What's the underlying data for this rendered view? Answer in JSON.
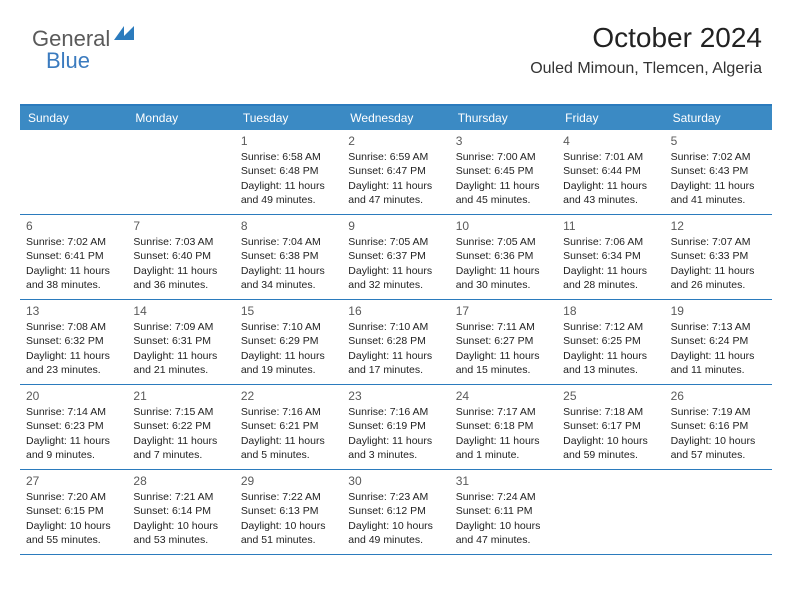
{
  "logo": {
    "text1": "General",
    "text2": "Blue",
    "mark_color": "#2b7bbd"
  },
  "title": "October 2024",
  "subtitle": "Ouled Mimoun, Tlemcen, Algeria",
  "header_bg": "#3b8ac4",
  "header_fg": "#ffffff",
  "border_color": "#2b7bbd",
  "day_headers": [
    "Sunday",
    "Monday",
    "Tuesday",
    "Wednesday",
    "Thursday",
    "Friday",
    "Saturday"
  ],
  "weeks": [
    [
      null,
      null,
      {
        "n": "1",
        "sr": "Sunrise: 6:58 AM",
        "ss": "Sunset: 6:48 PM",
        "dl": "Daylight: 11 hours and 49 minutes."
      },
      {
        "n": "2",
        "sr": "Sunrise: 6:59 AM",
        "ss": "Sunset: 6:47 PM",
        "dl": "Daylight: 11 hours and 47 minutes."
      },
      {
        "n": "3",
        "sr": "Sunrise: 7:00 AM",
        "ss": "Sunset: 6:45 PM",
        "dl": "Daylight: 11 hours and 45 minutes."
      },
      {
        "n": "4",
        "sr": "Sunrise: 7:01 AM",
        "ss": "Sunset: 6:44 PM",
        "dl": "Daylight: 11 hours and 43 minutes."
      },
      {
        "n": "5",
        "sr": "Sunrise: 7:02 AM",
        "ss": "Sunset: 6:43 PM",
        "dl": "Daylight: 11 hours and 41 minutes."
      }
    ],
    [
      {
        "n": "6",
        "sr": "Sunrise: 7:02 AM",
        "ss": "Sunset: 6:41 PM",
        "dl": "Daylight: 11 hours and 38 minutes."
      },
      {
        "n": "7",
        "sr": "Sunrise: 7:03 AM",
        "ss": "Sunset: 6:40 PM",
        "dl": "Daylight: 11 hours and 36 minutes."
      },
      {
        "n": "8",
        "sr": "Sunrise: 7:04 AM",
        "ss": "Sunset: 6:38 PM",
        "dl": "Daylight: 11 hours and 34 minutes."
      },
      {
        "n": "9",
        "sr": "Sunrise: 7:05 AM",
        "ss": "Sunset: 6:37 PM",
        "dl": "Daylight: 11 hours and 32 minutes."
      },
      {
        "n": "10",
        "sr": "Sunrise: 7:05 AM",
        "ss": "Sunset: 6:36 PM",
        "dl": "Daylight: 11 hours and 30 minutes."
      },
      {
        "n": "11",
        "sr": "Sunrise: 7:06 AM",
        "ss": "Sunset: 6:34 PM",
        "dl": "Daylight: 11 hours and 28 minutes."
      },
      {
        "n": "12",
        "sr": "Sunrise: 7:07 AM",
        "ss": "Sunset: 6:33 PM",
        "dl": "Daylight: 11 hours and 26 minutes."
      }
    ],
    [
      {
        "n": "13",
        "sr": "Sunrise: 7:08 AM",
        "ss": "Sunset: 6:32 PM",
        "dl": "Daylight: 11 hours and 23 minutes."
      },
      {
        "n": "14",
        "sr": "Sunrise: 7:09 AM",
        "ss": "Sunset: 6:31 PM",
        "dl": "Daylight: 11 hours and 21 minutes."
      },
      {
        "n": "15",
        "sr": "Sunrise: 7:10 AM",
        "ss": "Sunset: 6:29 PM",
        "dl": "Daylight: 11 hours and 19 minutes."
      },
      {
        "n": "16",
        "sr": "Sunrise: 7:10 AM",
        "ss": "Sunset: 6:28 PM",
        "dl": "Daylight: 11 hours and 17 minutes."
      },
      {
        "n": "17",
        "sr": "Sunrise: 7:11 AM",
        "ss": "Sunset: 6:27 PM",
        "dl": "Daylight: 11 hours and 15 minutes."
      },
      {
        "n": "18",
        "sr": "Sunrise: 7:12 AM",
        "ss": "Sunset: 6:25 PM",
        "dl": "Daylight: 11 hours and 13 minutes."
      },
      {
        "n": "19",
        "sr": "Sunrise: 7:13 AM",
        "ss": "Sunset: 6:24 PM",
        "dl": "Daylight: 11 hours and 11 minutes."
      }
    ],
    [
      {
        "n": "20",
        "sr": "Sunrise: 7:14 AM",
        "ss": "Sunset: 6:23 PM",
        "dl": "Daylight: 11 hours and 9 minutes."
      },
      {
        "n": "21",
        "sr": "Sunrise: 7:15 AM",
        "ss": "Sunset: 6:22 PM",
        "dl": "Daylight: 11 hours and 7 minutes."
      },
      {
        "n": "22",
        "sr": "Sunrise: 7:16 AM",
        "ss": "Sunset: 6:21 PM",
        "dl": "Daylight: 11 hours and 5 minutes."
      },
      {
        "n": "23",
        "sr": "Sunrise: 7:16 AM",
        "ss": "Sunset: 6:19 PM",
        "dl": "Daylight: 11 hours and 3 minutes."
      },
      {
        "n": "24",
        "sr": "Sunrise: 7:17 AM",
        "ss": "Sunset: 6:18 PM",
        "dl": "Daylight: 11 hours and 1 minute."
      },
      {
        "n": "25",
        "sr": "Sunrise: 7:18 AM",
        "ss": "Sunset: 6:17 PM",
        "dl": "Daylight: 10 hours and 59 minutes."
      },
      {
        "n": "26",
        "sr": "Sunrise: 7:19 AM",
        "ss": "Sunset: 6:16 PM",
        "dl": "Daylight: 10 hours and 57 minutes."
      }
    ],
    [
      {
        "n": "27",
        "sr": "Sunrise: 7:20 AM",
        "ss": "Sunset: 6:15 PM",
        "dl": "Daylight: 10 hours and 55 minutes."
      },
      {
        "n": "28",
        "sr": "Sunrise: 7:21 AM",
        "ss": "Sunset: 6:14 PM",
        "dl": "Daylight: 10 hours and 53 minutes."
      },
      {
        "n": "29",
        "sr": "Sunrise: 7:22 AM",
        "ss": "Sunset: 6:13 PM",
        "dl": "Daylight: 10 hours and 51 minutes."
      },
      {
        "n": "30",
        "sr": "Sunrise: 7:23 AM",
        "ss": "Sunset: 6:12 PM",
        "dl": "Daylight: 10 hours and 49 minutes."
      },
      {
        "n": "31",
        "sr": "Sunrise: 7:24 AM",
        "ss": "Sunset: 6:11 PM",
        "dl": "Daylight: 10 hours and 47 minutes."
      },
      null,
      null
    ]
  ]
}
